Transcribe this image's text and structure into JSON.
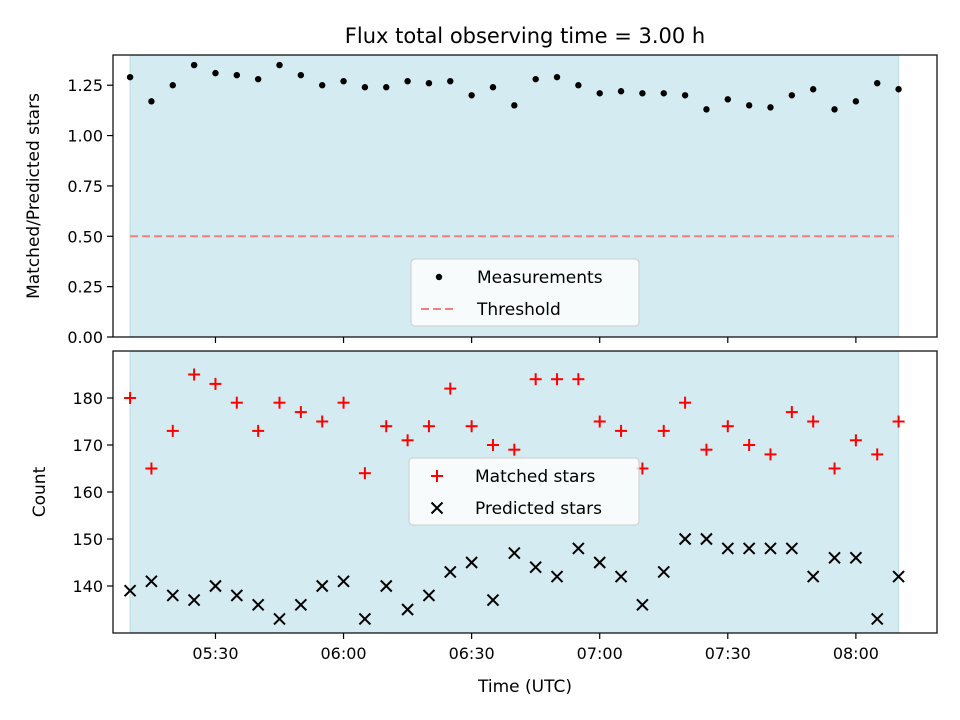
{
  "title": "Flux total observing time = 3.00 h",
  "xlabel": "Time (UTC)",
  "x_ticks": [
    "05:30",
    "06:00",
    "06:30",
    "07:00",
    "07:30",
    "08:00"
  ],
  "colors": {
    "band": "#d4ebf1",
    "measurement": "#000000",
    "threshold": "#f08080",
    "matched": "#ff0000",
    "predicted": "#000000"
  },
  "chart_data": [
    {
      "type": "scatter",
      "panel": "top",
      "ylabel": "Matched/Predicted stars",
      "xlim": [
        "05:06",
        "08:19"
      ],
      "ylim": [
        0,
        1.4
      ],
      "y_ticks": [
        "0.00",
        "0.25",
        "0.50",
        "0.75",
        "1.00",
        "1.25"
      ],
      "band": [
        "05:10",
        "08:10"
      ],
      "threshold": 0.5,
      "legend": [
        "Measurements",
        "Threshold"
      ],
      "legend_position": "lower center",
      "series": [
        {
          "name": "Measurements",
          "x": [
            "05:10",
            "05:15",
            "05:20",
            "05:25",
            "05:30",
            "05:35",
            "05:40",
            "05:45",
            "05:50",
            "05:55",
            "06:00",
            "06:05",
            "06:10",
            "06:15",
            "06:20",
            "06:25",
            "06:30",
            "06:35",
            "06:40",
            "06:45",
            "06:50",
            "06:55",
            "07:00",
            "07:05",
            "07:10",
            "07:15",
            "07:20",
            "07:25",
            "07:30",
            "07:35",
            "07:40",
            "07:45",
            "07:50",
            "07:55",
            "08:00",
            "08:05",
            "08:10"
          ],
          "y": [
            1.29,
            1.17,
            1.25,
            1.35,
            1.31,
            1.3,
            1.28,
            1.35,
            1.3,
            1.25,
            1.27,
            1.24,
            1.24,
            1.27,
            1.26,
            1.27,
            1.2,
            1.24,
            1.15,
            1.28,
            1.29,
            1.25,
            1.21,
            1.22,
            1.21,
            1.21,
            1.2,
            1.13,
            1.18,
            1.15,
            1.14,
            1.2,
            1.23,
            1.13,
            1.17,
            1.26,
            1.23
          ]
        }
      ]
    },
    {
      "type": "scatter",
      "panel": "bottom",
      "ylabel": "Count",
      "xlim": [
        "05:06",
        "08:19"
      ],
      "ylim": [
        130,
        190
      ],
      "y_ticks": [
        "140",
        "150",
        "160",
        "170",
        "180"
      ],
      "band": [
        "05:10",
        "08:10"
      ],
      "legend": [
        "Matched stars",
        "Predicted stars"
      ],
      "legend_position": "center",
      "series": [
        {
          "name": "Matched stars",
          "marker": "+",
          "x": [
            "05:10",
            "05:15",
            "05:20",
            "05:25",
            "05:30",
            "05:35",
            "05:40",
            "05:45",
            "05:50",
            "05:55",
            "06:00",
            "06:05",
            "06:10",
            "06:15",
            "06:20",
            "06:25",
            "06:30",
            "06:35",
            "06:40",
            "06:45",
            "06:50",
            "06:55",
            "07:00",
            "07:05",
            "07:10",
            "07:15",
            "07:20",
            "07:25",
            "07:30",
            "07:35",
            "07:40",
            "07:45",
            "07:50",
            "07:55",
            "08:00",
            "08:05",
            "08:10"
          ],
          "y": [
            180,
            165,
            173,
            185,
            183,
            179,
            173,
            179,
            177,
            175,
            179,
            164,
            174,
            171,
            174,
            182,
            174,
            170,
            169,
            184,
            184,
            184,
            175,
            173,
            165,
            173,
            179,
            169,
            174,
            170,
            168,
            177,
            175,
            165,
            171,
            168,
            175
          ]
        },
        {
          "name": "Predicted stars",
          "marker": "x",
          "x": [
            "05:10",
            "05:15",
            "05:20",
            "05:25",
            "05:30",
            "05:35",
            "05:40",
            "05:45",
            "05:50",
            "05:55",
            "06:00",
            "06:05",
            "06:10",
            "06:15",
            "06:20",
            "06:25",
            "06:30",
            "06:35",
            "06:40",
            "06:45",
            "06:50",
            "06:55",
            "07:00",
            "07:05",
            "07:10",
            "07:15",
            "07:20",
            "07:25",
            "07:30",
            "07:35",
            "07:40",
            "07:45",
            "07:50",
            "07:55",
            "08:00",
            "08:05",
            "08:10"
          ],
          "y": [
            139,
            141,
            138,
            137,
            140,
            138,
            136,
            133,
            136,
            140,
            141,
            133,
            140,
            135,
            138,
            143,
            145,
            137,
            147,
            144,
            142,
            148,
            145,
            142,
            136,
            143,
            150,
            150,
            148,
            148,
            148,
            148,
            142,
            146,
            146,
            133,
            142
          ]
        }
      ]
    }
  ]
}
